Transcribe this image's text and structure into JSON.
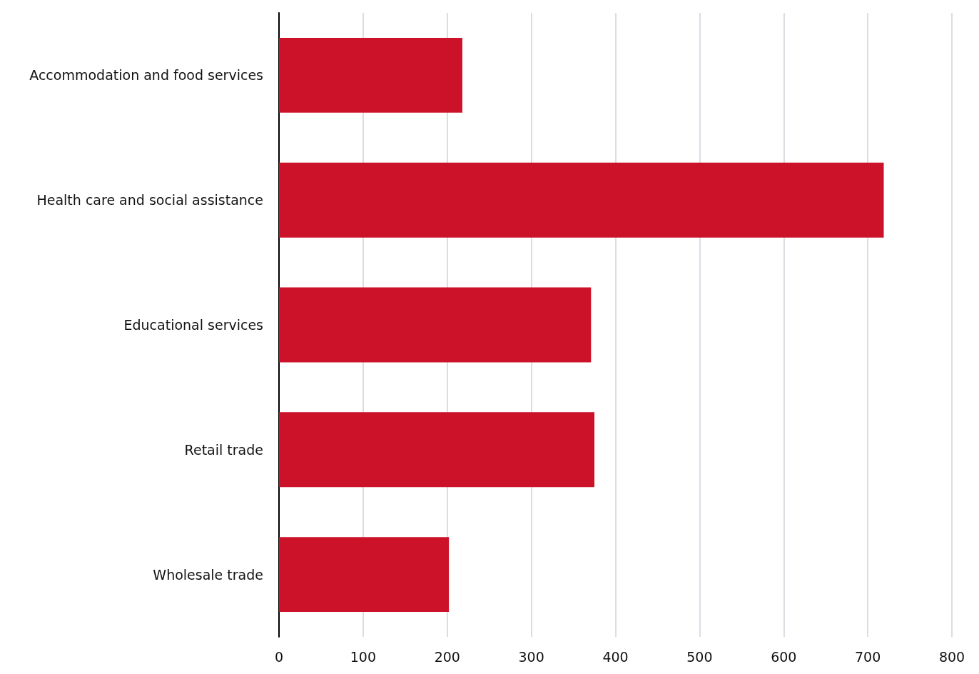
{
  "chart_data": {
    "type": "bar",
    "orientation": "horizontal",
    "categories": [
      "Accommodation and food services",
      "Health care and social assistance",
      "Educational services",
      "Retail trade",
      "Wholesale trade"
    ],
    "values": [
      218,
      719,
      371,
      375,
      202
    ],
    "color": "#cc1228",
    "xlim": [
      0,
      800
    ],
    "xticks": [
      0,
      100,
      200,
      300,
      400,
      500,
      600,
      700,
      800
    ],
    "grid": "x"
  }
}
